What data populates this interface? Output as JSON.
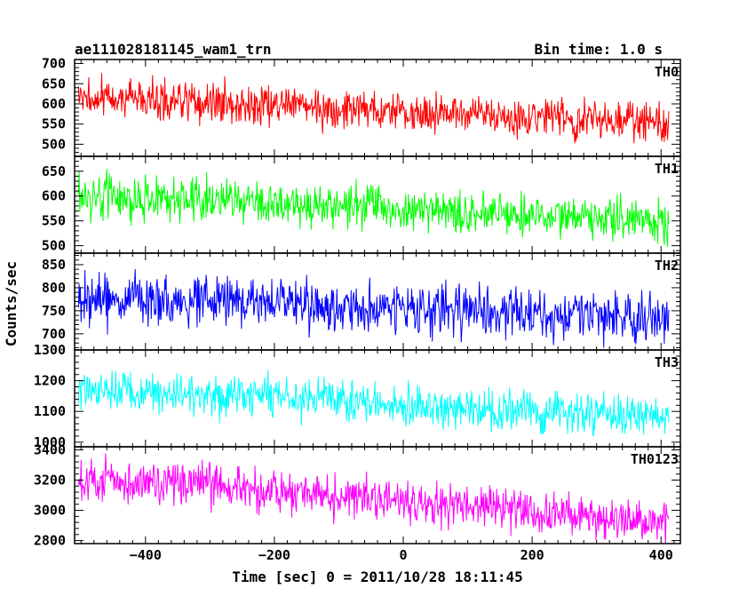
{
  "chart_data": {
    "type": "line",
    "title": "ae111028181145_wam1_trn",
    "subtitle": "Bin time: 1.0 s",
    "xlabel": "Time [sec] 0 = 2011/10/28 18:11:45",
    "ylabel": "Counts/sec",
    "xlim": [
      -510,
      430
    ],
    "x_ticks": [
      -400,
      -200,
      0,
      200,
      400
    ],
    "x_step": 1.0,
    "x_start": -504,
    "x_end": 412,
    "grid": false,
    "legend": "none",
    "panels": [
      {
        "name": "TH0",
        "color": "#ff0000",
        "ylim": [
          470,
          710
        ],
        "ticks": [
          500,
          550,
          600,
          650,
          700
        ],
        "trend": [
          [
            -504,
            617
          ],
          [
            -300,
            605
          ],
          [
            -100,
            590
          ],
          [
            100,
            577
          ],
          [
            300,
            563
          ],
          [
            412,
            558
          ]
        ],
        "noise": 30
      },
      {
        "name": "TH1",
        "color": "#00ff00",
        "ylim": [
          485,
          680
        ],
        "ticks": [
          500,
          550,
          600,
          650
        ],
        "trend": [
          [
            -504,
            598
          ],
          [
            -300,
            592
          ],
          [
            -100,
            580
          ],
          [
            100,
            567
          ],
          [
            300,
            553
          ],
          [
            412,
            548
          ]
        ],
        "noise": 27
      },
      {
        "name": "TH2",
        "color": "#0000ff",
        "ylim": [
          665,
          875
        ],
        "ticks": [
          700,
          750,
          800,
          850
        ],
        "trend": [
          [
            -504,
            772
          ],
          [
            -300,
            770
          ],
          [
            -100,
            760
          ],
          [
            100,
            748
          ],
          [
            300,
            738
          ],
          [
            412,
            735
          ]
        ],
        "noise": 33
      },
      {
        "name": "TH3",
        "color": "#00ffff",
        "ylim": [
          985,
          1300
        ],
        "ticks": [
          1000,
          1100,
          1200,
          1300
        ],
        "trend": [
          [
            -504,
            1170
          ],
          [
            -300,
            1158
          ],
          [
            -100,
            1135
          ],
          [
            100,
            1110
          ],
          [
            300,
            1090
          ],
          [
            412,
            1082
          ]
        ],
        "noise": 42
      },
      {
        "name": "TH0123",
        "color": "#ff00ff",
        "ylim": [
          2780,
          3420
        ],
        "ticks": [
          2800,
          3000,
          3200,
          3400
        ],
        "trend": [
          [
            -504,
            3210
          ],
          [
            -300,
            3160
          ],
          [
            -100,
            3095
          ],
          [
            100,
            3020
          ],
          [
            300,
            2950
          ],
          [
            412,
            2920
          ]
        ],
        "noise": 85
      }
    ]
  }
}
